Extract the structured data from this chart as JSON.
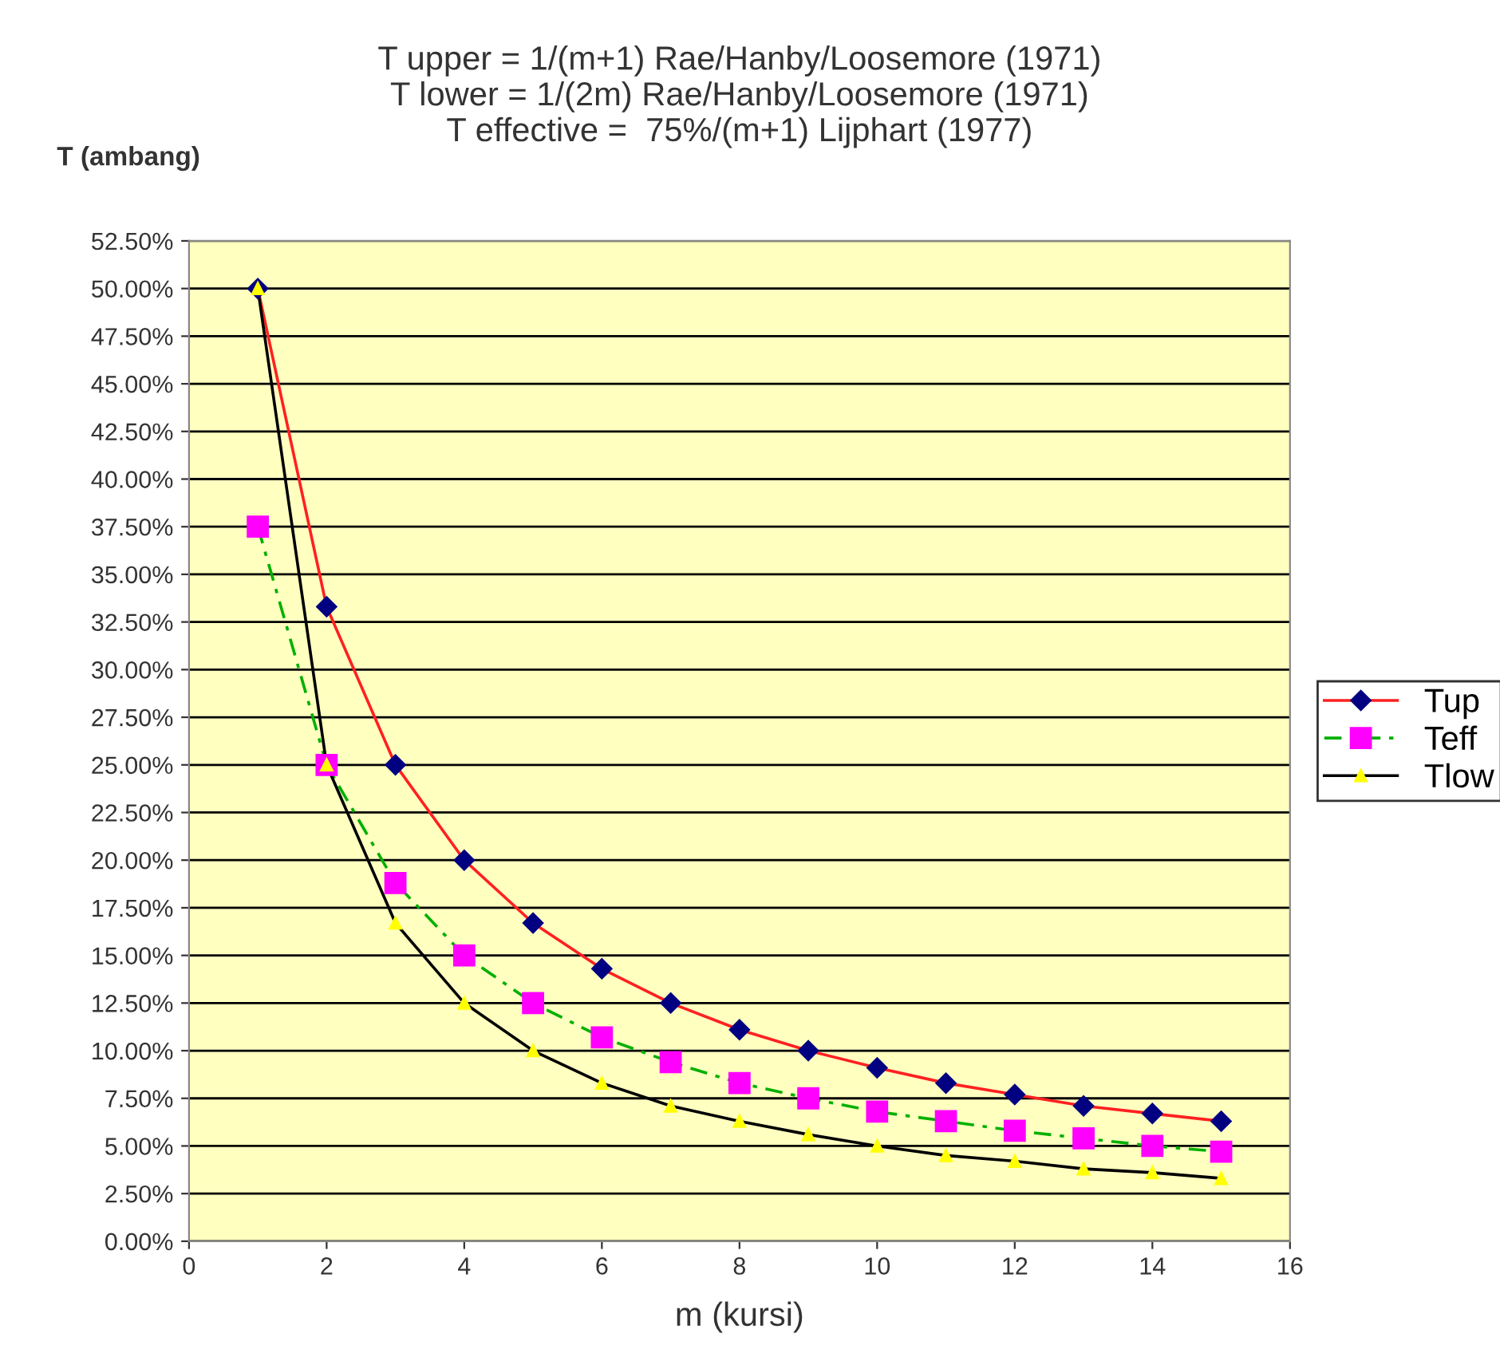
{
  "chart_data": {
    "type": "line",
    "title": "T upper = 1/(m+1) Rae/Hanby/Loosemore (1971)\nT lower = 1/(2m) Rae/Hanby/Loosemore (1971)\nT effective =  75%/(m+1) Lijphart (1977)",
    "ylabel": "T (ambang)",
    "xlabel": "m (kursi)",
    "x": [
      1,
      2,
      3,
      4,
      5,
      6,
      7,
      8,
      9,
      10,
      11,
      12,
      13,
      14,
      15
    ],
    "series": [
      {
        "name": "Tup",
        "color": "#ff2020",
        "colors": [
          "#000080",
          "#000080",
          "#000080",
          "#000080",
          "#000080",
          "#000080",
          "#000080",
          "#000080",
          "#000080",
          "#000080",
          "#000080",
          "#000080",
          "#000080",
          "#000080",
          "#000080"
        ],
        "marker": "diamond",
        "line_style": "solid",
        "values": [
          50,
          33.3,
          25,
          20,
          16.7,
          14.3,
          12.5,
          11.1,
          10,
          9.1,
          8.3,
          7.7,
          7.1,
          6.7,
          6.3
        ]
      },
      {
        "name": "Teff",
        "color": "#00b000",
        "colors": [
          "#ff00ff",
          "#ff00ff",
          "#ff00ff",
          "#ff00ff",
          "#ff00ff",
          "#ff00ff",
          "#ff00ff",
          "#ff00ff",
          "#ff00ff",
          "#ff00ff",
          "#ff00ff",
          "#ff00ff",
          "#ff00ff",
          "#ff00ff",
          "#ff00ff"
        ],
        "marker": "square",
        "line_style": "dashed",
        "values": [
          37.5,
          25,
          18.8,
          15,
          12.5,
          10.7,
          9.4,
          8.3,
          7.5,
          6.8,
          6.3,
          5.8,
          5.4,
          5,
          4.7
        ]
      },
      {
        "name": "Tlow",
        "color": "#000000",
        "colors": [
          "#ffff00",
          "#ffff00",
          "#ffff00",
          "#ffff00",
          "#ffff00",
          "#ffff00",
          "#ffff00",
          "#ffff00",
          "#ffff00",
          "#ffff00",
          "#ffff00",
          "#ffff00",
          "#ffff00",
          "#ffff00",
          "#ffff00"
        ],
        "marker": "triangle",
        "line_style": "solid",
        "values": [
          50,
          25,
          16.7,
          12.5,
          10,
          8.3,
          7.1,
          6.3,
          5.6,
          5,
          4.5,
          4.2,
          3.8,
          3.6,
          3.3
        ]
      }
    ],
    "xlim": [
      0,
      16
    ],
    "xticks": [
      0,
      2,
      4,
      6,
      8,
      10,
      12,
      14,
      16
    ],
    "ylim": [
      0,
      52.5
    ],
    "yticks": [
      {
        "value": 0,
        "label": "0.00%"
      },
      {
        "value": 2.5,
        "label": "2.50%"
      },
      {
        "value": 5,
        "label": "5.00%"
      },
      {
        "value": 7.5,
        "label": "7.50%"
      },
      {
        "value": 10,
        "label": "10.00%"
      },
      {
        "value": 12.5,
        "label": "12.50%"
      },
      {
        "value": 15,
        "label": "15.00%"
      },
      {
        "value": 17.5,
        "label": "17.50%"
      },
      {
        "value": 20,
        "label": "20.00%"
      },
      {
        "value": 22.5,
        "label": "22.50%"
      },
      {
        "value": 25,
        "label": "25.00%"
      },
      {
        "value": 27.5,
        "label": "27.50%"
      },
      {
        "value": 30,
        "label": "30.00%"
      },
      {
        "value": 32.5,
        "label": "32.50%"
      },
      {
        "value": 35,
        "label": "35.00%"
      },
      {
        "value": 37.5,
        "label": "37.50%"
      },
      {
        "value": 40,
        "label": "40.00%"
      },
      {
        "value": 42.5,
        "label": "42.50%"
      },
      {
        "value": 45,
        "label": "45.00%"
      },
      {
        "value": 47.5,
        "label": "47.50%"
      },
      {
        "value": 50,
        "label": "50.00%"
      },
      {
        "value": 52.5,
        "label": "52.50%"
      }
    ],
    "grid": "y",
    "legend": "right"
  }
}
